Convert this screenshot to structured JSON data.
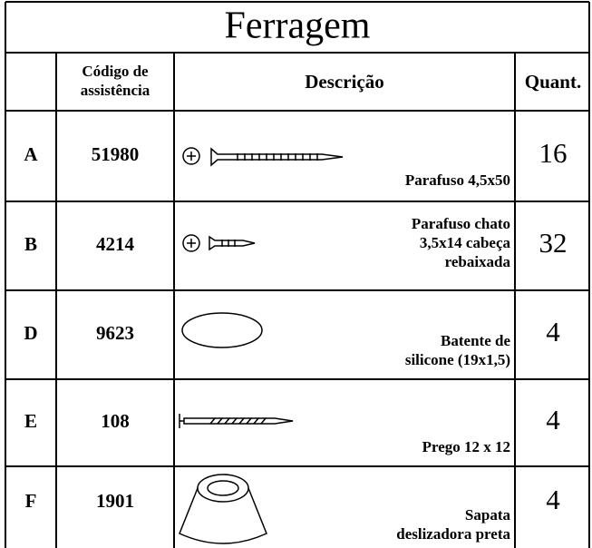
{
  "table": {
    "title": "Ferragem",
    "header": {
      "letter_code_lines": [
        "Código de",
        "assistência"
      ],
      "description": "Descrição",
      "quantity": "Quant."
    },
    "rows": [
      {
        "letter": "A",
        "code": "51980",
        "description_lines": [
          "Parafuso 4,5x50"
        ],
        "quantity": "16"
      },
      {
        "letter": "B",
        "code": "4214",
        "description_lines": [
          "Parafuso chato",
          "3,5x14 cabeça",
          "rebaixada"
        ],
        "quantity": "32"
      },
      {
        "letter": "D",
        "code": "9623",
        "description_lines": [
          "Batente de",
          "silicone (19x1,5)"
        ],
        "quantity": "4"
      },
      {
        "letter": "E",
        "code": "108",
        "description_lines": [
          "Prego 12 x 12"
        ],
        "quantity": "4"
      },
      {
        "letter": "F",
        "code": "1901",
        "description_lines": [
          "Sapata",
          "deslizadora preta"
        ],
        "quantity": "4"
      }
    ]
  }
}
